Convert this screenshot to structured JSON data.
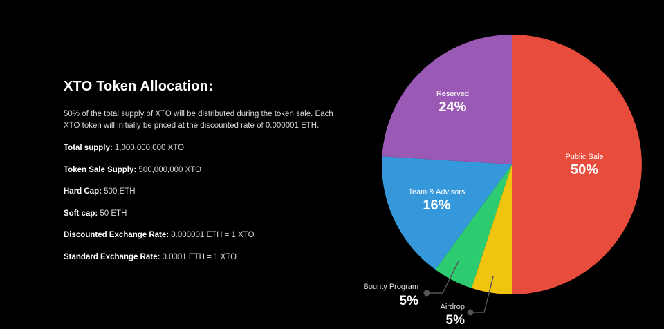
{
  "info": {
    "title": "XTO Token Allocation:",
    "description": "50% of the total supply of XTO will be distributed during the token sale. Each XTO token will initially be priced at the discounted rate of 0.000001 ETH.",
    "stats": [
      {
        "label": "Total supply:",
        "value": " 1,000,000,000 XTO"
      },
      {
        "label": "Token Sale Supply:",
        "value": " 500,000,000 XTO"
      },
      {
        "label": "Hard Cap:",
        "value": " 500 ETH"
      },
      {
        "label": "Soft cap:",
        "value": " 50 ETH"
      },
      {
        "label": "Discounted Exchange Rate:",
        "value": " 0.000001 ETH = 1 XTO"
      },
      {
        "label": "Standard Exchange Rate:",
        "value": " 0.0001 ETH = 1 XTO"
      }
    ]
  },
  "chart_data": {
    "type": "pie",
    "categories": [
      "Public Sale",
      "Airdrop",
      "Bounty Program",
      "Team & Advisors",
      "Reserved"
    ],
    "values": [
      50,
      5,
      5,
      16,
      24
    ],
    "value_labels": [
      "50%",
      "5%",
      "5%",
      "16%",
      "24%"
    ],
    "colors": [
      "#e74c3c",
      "#f1c40f",
      "#2ecc71",
      "#3498db",
      "#9b59b6"
    ],
    "start": "12 o'clock",
    "direction": "clockwise",
    "external_labels": [
      "Airdrop",
      "Bounty Program"
    ]
  }
}
